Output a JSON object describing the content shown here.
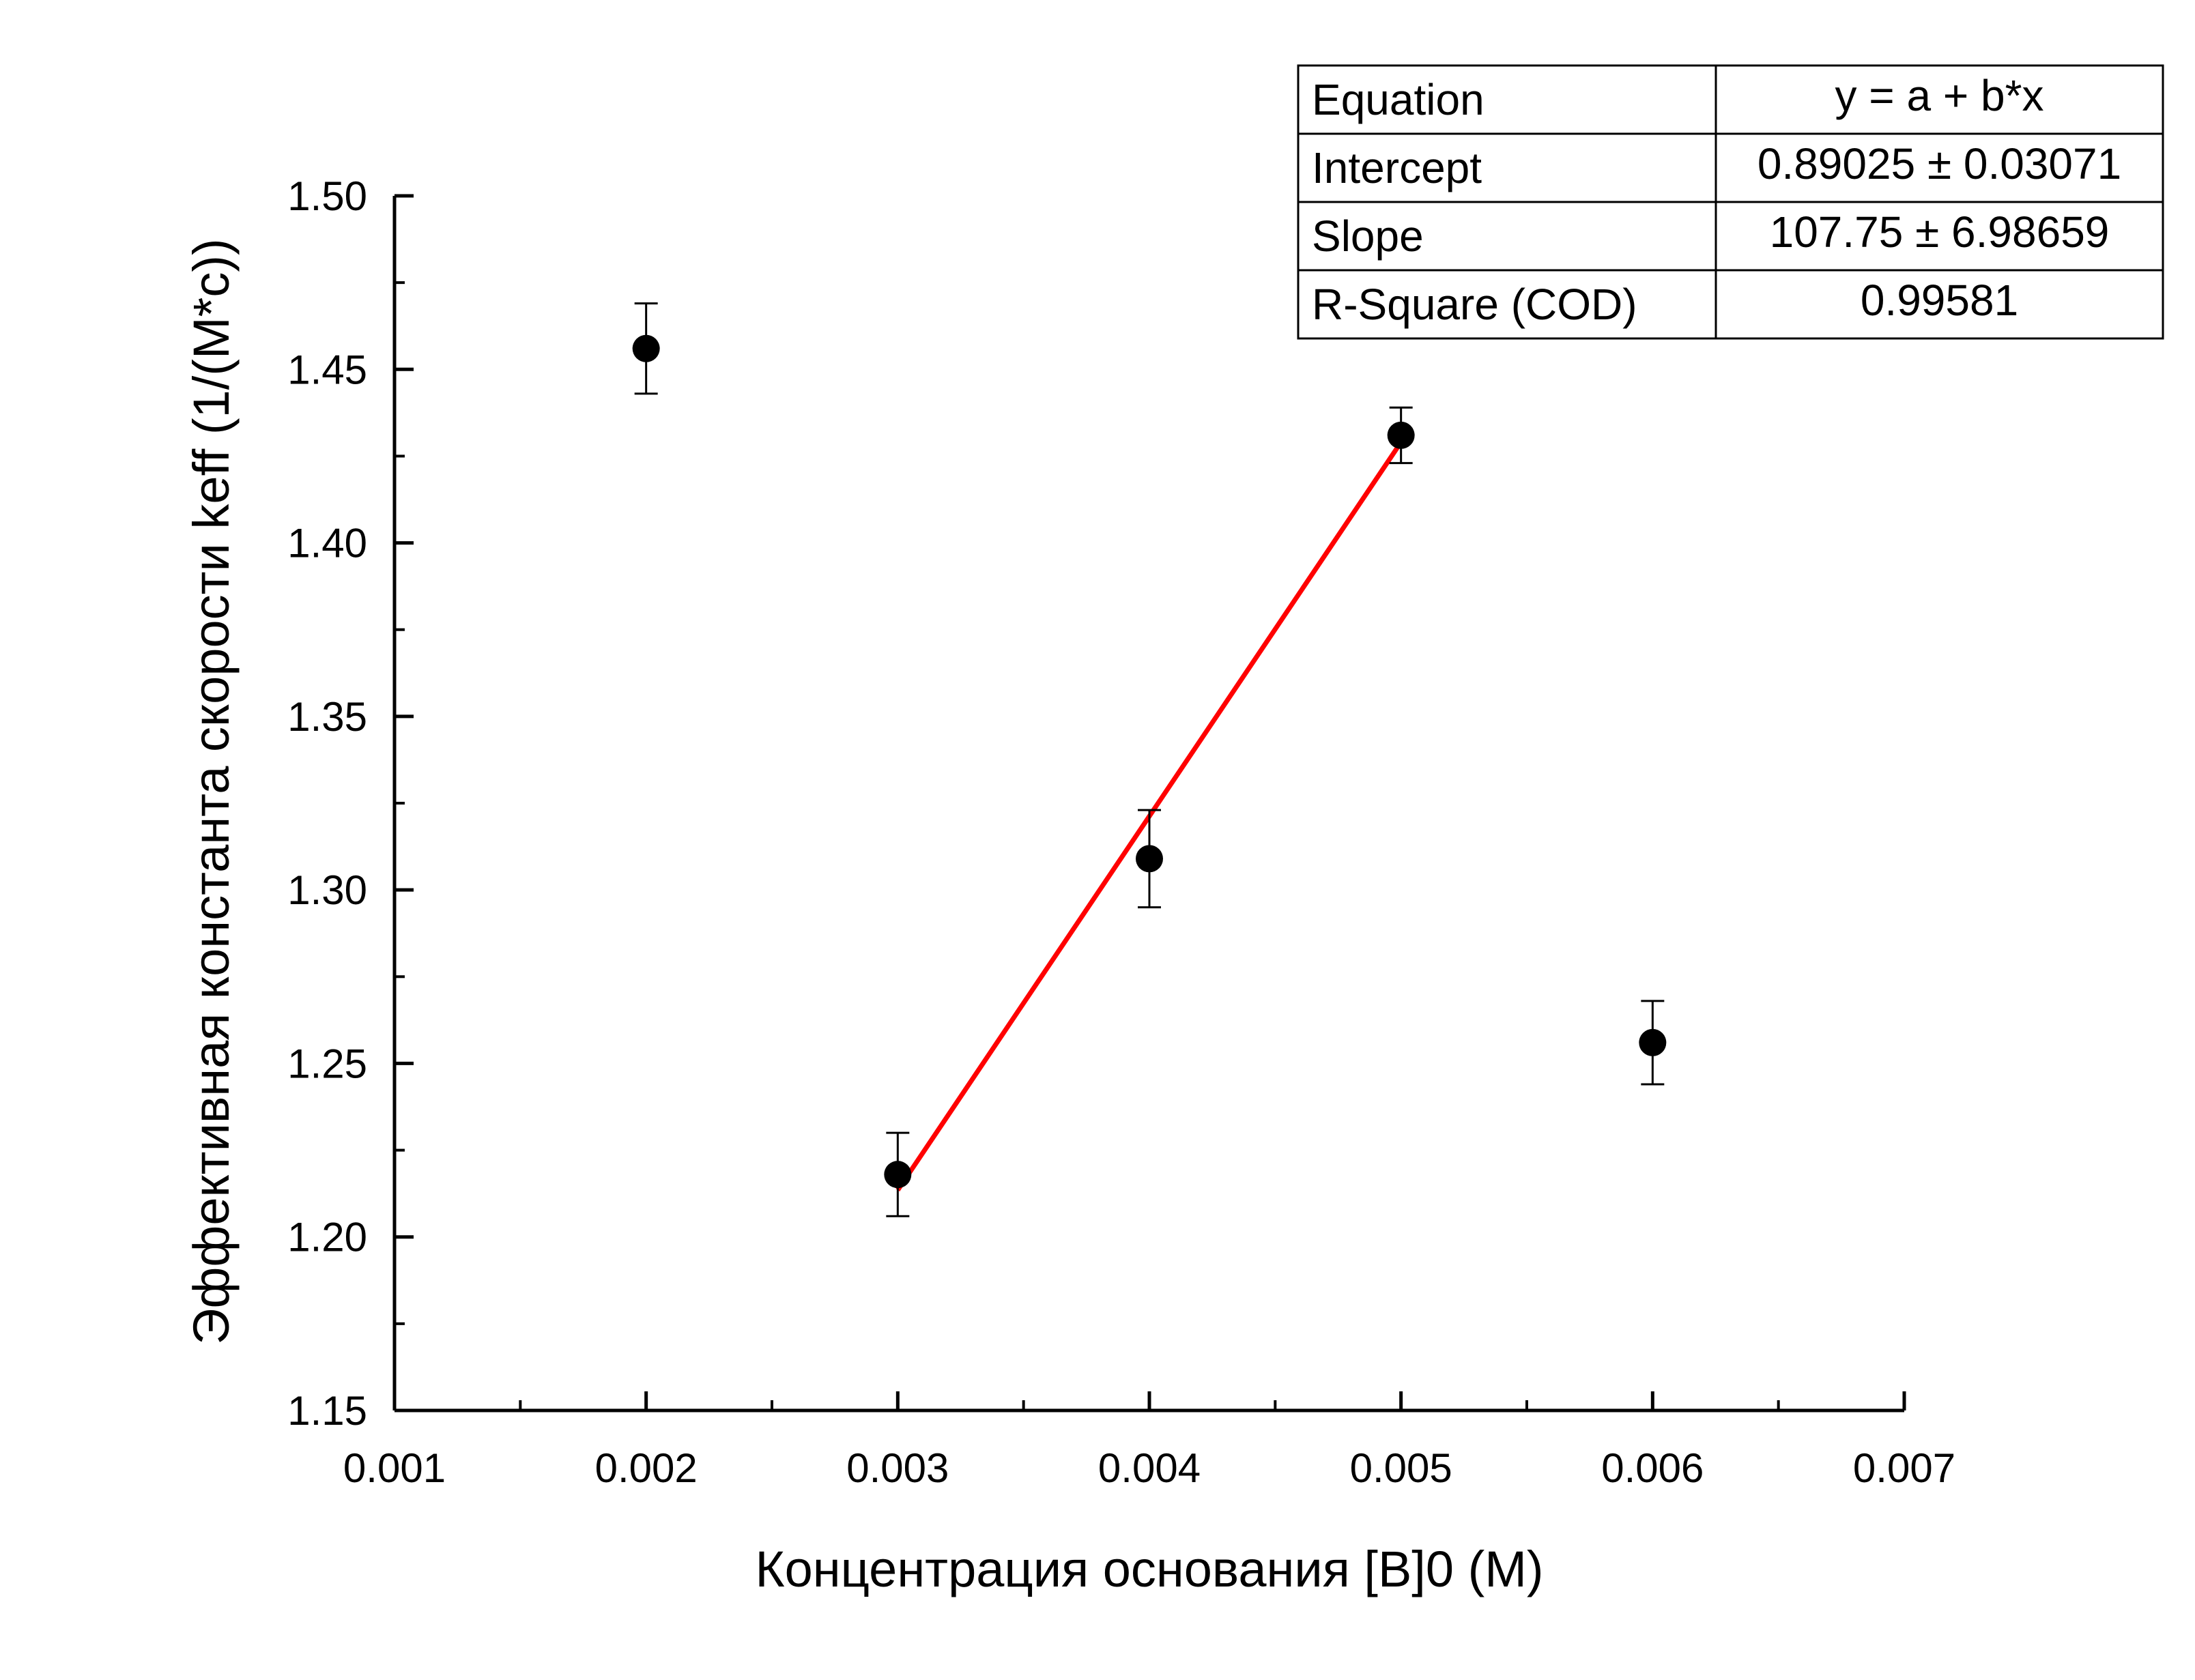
{
  "chart_data": {
    "type": "scatter",
    "xlabel": "Концентрация основания [B]0 (M)",
    "ylabel": "Эффективная константа скорости keff (1/(M*c))",
    "xlim": [
      0.001,
      0.007
    ],
    "ylim": [
      1.15,
      1.5
    ],
    "x_ticks": [
      "0.001",
      "0.002",
      "0.003",
      "0.004",
      "0.005",
      "0.006",
      "0.007"
    ],
    "y_ticks": [
      "1.15",
      "1.20",
      "1.25",
      "1.30",
      "1.35",
      "1.40",
      "1.45",
      "1.50"
    ],
    "grid": false,
    "points": [
      {
        "x": 0.002,
        "y": 1.456,
        "err": 0.013
      },
      {
        "x": 0.003,
        "y": 1.218,
        "err": 0.012
      },
      {
        "x": 0.004,
        "y": 1.309,
        "err": 0.014
      },
      {
        "x": 0.005,
        "y": 1.431,
        "err": 0.008
      },
      {
        "x": 0.006,
        "y": 1.256,
        "err": 0.012
      }
    ],
    "fit_line": {
      "x_range": [
        0.003,
        0.005
      ],
      "intercept": 0.89025,
      "slope": 107.75,
      "color": "#ff0000"
    },
    "fit_table": {
      "rows": [
        [
          "Equation",
          "y = a + b*x"
        ],
        [
          "Intercept",
          "0.89025 ± 0.03071"
        ],
        [
          "Slope",
          "107.75 ± 6.98659"
        ],
        [
          "R-Square (COD)",
          "0.99581"
        ]
      ]
    }
  }
}
